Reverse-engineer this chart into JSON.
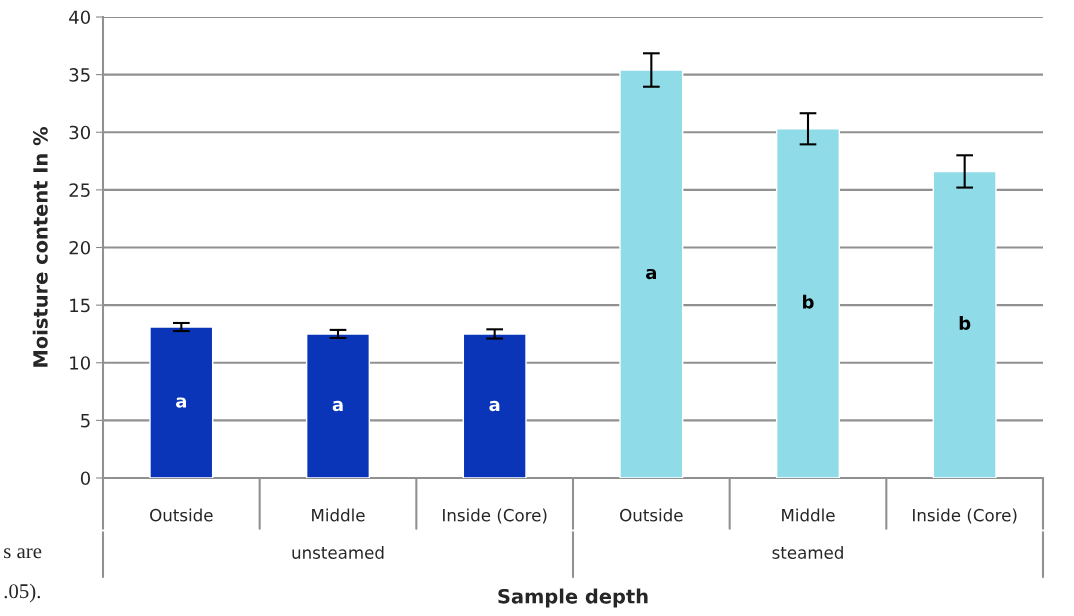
{
  "chart_data": {
    "type": "bar",
    "categories": [
      "Outside",
      "Middle",
      "Inside (Core)",
      "Outside",
      "Middle",
      "Inside (Core)"
    ],
    "series": [
      {
        "color": "#0a35b8",
        "values": [
          13.1,
          12.5,
          12.5,
          null,
          null,
          null
        ],
        "errors": [
          0.35,
          0.35,
          0.4,
          null,
          null,
          null
        ]
      },
      {
        "color": "#8fdbe8",
        "values": [
          null,
          null,
          null,
          35.4,
          30.3,
          26.6
        ],
        "errors": [
          null,
          null,
          null,
          1.45,
          1.35,
          1.4
        ]
      }
    ],
    "xlabel": "Sample depth",
    "ylabel": "Moisture content In %",
    "ylim": [
      0,
      40
    ],
    "yticks": [
      0,
      5,
      10,
      15,
      20,
      25,
      30,
      35,
      40
    ],
    "grid": "y",
    "legend": false,
    "annotations": [
      "a",
      "a",
      "a",
      "a",
      "b",
      "b",
      "unsteamed",
      "steamed",
      "s are",
      ".05)."
    ]
  }
}
